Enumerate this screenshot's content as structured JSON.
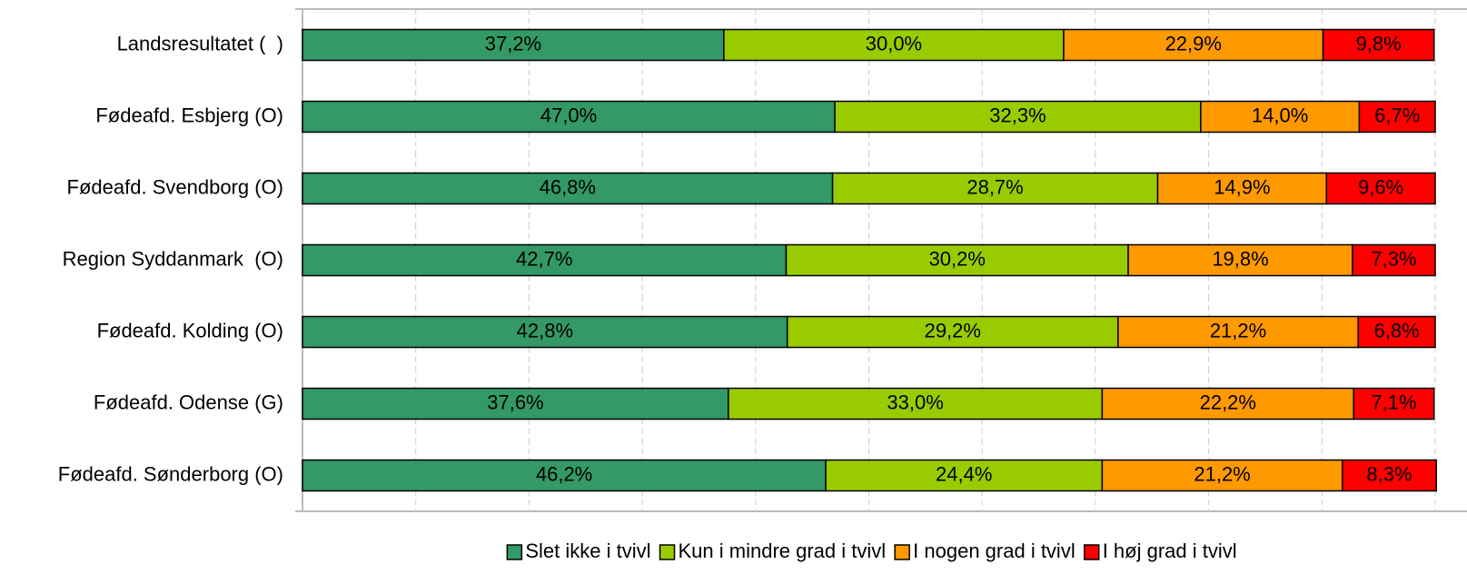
{
  "chart_data": {
    "type": "stacked_barh",
    "categories": [
      "Landsresultatet (  )",
      "Fødeafd. Esbjerg (O)",
      "Fødeafd. Svendborg (O)",
      "Region Syddanmark  (O)",
      "Fødeafd. Kolding (O)",
      "Fødeafd. Odense (G)",
      "Fødeafd. Sønderborg (O)"
    ],
    "series": [
      {
        "name": "Slet ikke i tvivl",
        "color": "#339966",
        "values": [
          37.2,
          47.0,
          46.8,
          42.7,
          42.8,
          37.6,
          46.2
        ],
        "value_labels": [
          "37,2%",
          "47,0%",
          "46,8%",
          "42,7%",
          "42,8%",
          "37,6%",
          "46,2%"
        ]
      },
      {
        "name": "Kun i mindre grad i tvivl",
        "color": "#99cc00",
        "values": [
          30.0,
          32.3,
          28.7,
          30.2,
          29.2,
          33.0,
          24.4
        ],
        "value_labels": [
          "30,0%",
          "32,3%",
          "28,7%",
          "30,2%",
          "29,2%",
          "33,0%",
          "24,4%"
        ]
      },
      {
        "name": "I nogen grad i tvivl",
        "color": "#ff9900",
        "values": [
          22.9,
          14.0,
          14.9,
          19.8,
          21.2,
          22.2,
          21.2
        ],
        "value_labels": [
          "22,9%",
          "14,0%",
          "14,9%",
          "19,8%",
          "21,2%",
          "22,2%",
          "21,2%"
        ]
      },
      {
        "name": "I høj grad i tvivl",
        "color": "#ff0000",
        "values": [
          9.8,
          6.7,
          9.6,
          7.3,
          6.8,
          7.1,
          8.3
        ],
        "value_labels": [
          "9,8%",
          "6,7%",
          "9,6%",
          "7,3%",
          "6,8%",
          "7,1%",
          "8,3%"
        ]
      }
    ],
    "xlim": [
      0,
      100
    ],
    "xticks": [
      0,
      10,
      20,
      30,
      40,
      50,
      60,
      70,
      80,
      90,
      100
    ],
    "grid": true,
    "legend": "bottom"
  }
}
